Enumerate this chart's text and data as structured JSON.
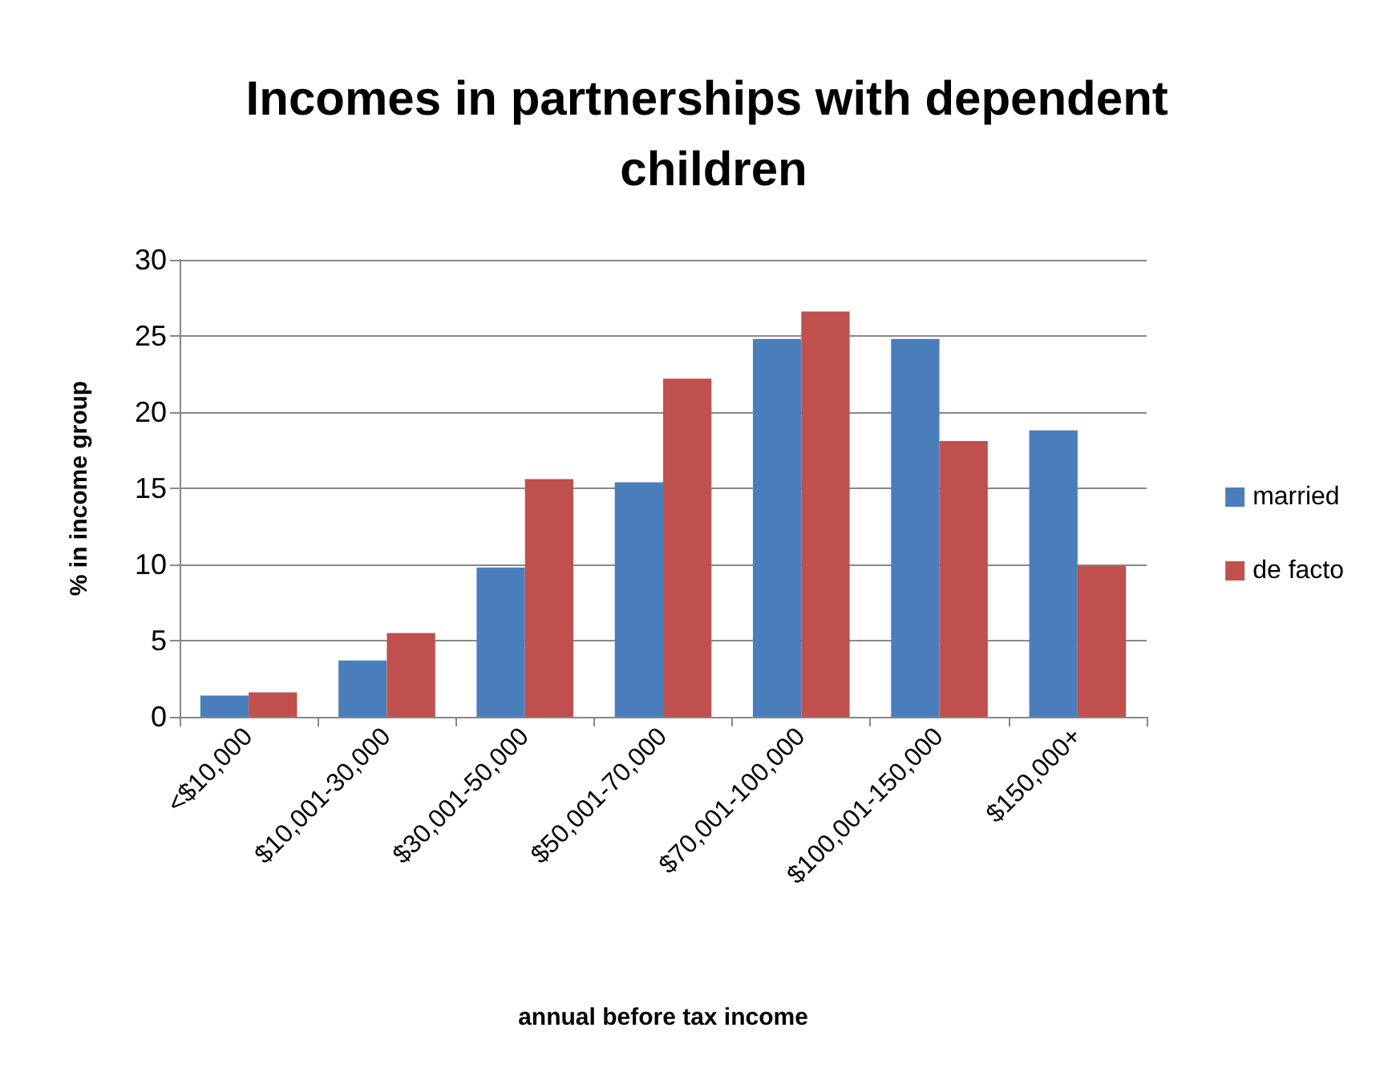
{
  "chart_data": {
    "type": "bar",
    "title": "Incomes in partnerships with dependent children",
    "xlabel": "annual before tax income",
    "ylabel": "% in income group",
    "categories": [
      "<$10,000",
      "$10,001-30,000",
      "$30,001-50,000",
      "$50,001-70,000",
      "$70,001-100,000",
      "$100,001-150,000",
      "$150,000+"
    ],
    "series": [
      {
        "name": "married",
        "color": "#4a7ebb",
        "values": [
          1.4,
          3.7,
          9.8,
          15.4,
          24.8,
          24.8,
          18.8
        ]
      },
      {
        "name": "de facto",
        "color": "#c0504d",
        "values": [
          1.6,
          5.5,
          15.6,
          22.2,
          26.6,
          18.1,
          9.9
        ]
      }
    ],
    "ylim": [
      0,
      30
    ],
    "yticks": [
      0,
      5,
      10,
      15,
      20,
      25,
      30
    ],
    "grid": "y",
    "legend": "right"
  }
}
